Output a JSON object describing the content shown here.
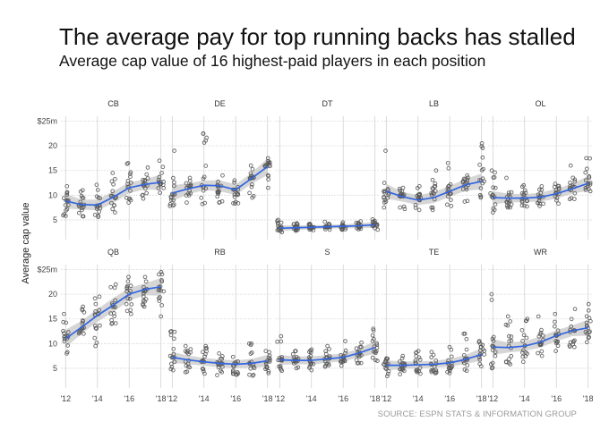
{
  "title": "The average pay for top running backs has stalled",
  "subtitle": "Average cap value of 16 highest-paid players in each position",
  "source": "SOURCE: ESPN STATS & INFORMATION GROUP",
  "chart_data": {
    "type": "scatter",
    "facet": true,
    "ylabel": "Average cap value",
    "ylim": [
      1,
      26
    ],
    "xlim": [
      2011.7,
      2018.3
    ],
    "yticks": [
      5,
      10,
      15,
      20,
      25
    ],
    "ytick_labels": [
      "5",
      "10",
      "15",
      "20",
      "$25m"
    ],
    "xticks": [
      2012,
      2014,
      2016,
      2018
    ],
    "xtick_labels": [
      "'12",
      "'14",
      "'16",
      "'18"
    ],
    "years": [
      2012,
      2013,
      2014,
      2015,
      2016,
      2017,
      2018
    ],
    "colors": {
      "point": "#555555",
      "trend": "#3366e0",
      "band": "#c8c8c8",
      "grid": "#d2d2d2"
    },
    "panels": [
      {
        "name": "CB",
        "trend": [
          8.8,
          8.1,
          8.0,
          9.6,
          11.5,
          12.2,
          12.6
        ],
        "band": [
          1.5,
          1.0,
          1.1,
          1.2,
          1.1,
          1.0,
          1.6
        ],
        "lo": [
          5.8,
          5.7,
          5.6,
          6.5,
          8.5,
          9.3,
          10.5
        ],
        "hi": [
          11.8,
          11.0,
          12.1,
          14.5,
          16.5,
          15.6,
          17.0
        ]
      },
      {
        "name": "DE",
        "trend": [
          10.4,
          11.3,
          12.0,
          11.9,
          11.1,
          13.4,
          15.8
        ],
        "band": [
          1.6,
          1.1,
          1.0,
          1.1,
          1.1,
          1.1,
          1.7
        ],
        "lo": [
          7.8,
          8.5,
          8.2,
          8.5,
          8.3,
          9.5,
          11.5
        ],
        "hi": [
          19.0,
          13.5,
          22.5,
          14.0,
          13.0,
          16.0,
          17.5
        ]
      },
      {
        "name": "DT",
        "trend": [
          3.3,
          3.4,
          3.5,
          3.6,
          3.7,
          3.8,
          4.0
        ],
        "band": [
          0.6,
          0.5,
          0.4,
          0.4,
          0.4,
          0.5,
          0.6
        ],
        "lo": [
          2.5,
          2.8,
          2.9,
          3.0,
          3.0,
          3.1,
          3.0
        ],
        "hi": [
          5.0,
          4.3,
          4.2,
          4.6,
          4.5,
          4.7,
          5.1
        ]
      },
      {
        "name": "LB",
        "trend": [
          10.8,
          9.7,
          9.0,
          9.5,
          10.8,
          12.1,
          12.8
        ],
        "band": [
          1.5,
          1.0,
          1.0,
          1.1,
          1.1,
          1.2,
          1.6
        ],
        "lo": [
          7.5,
          7.2,
          7.0,
          7.0,
          7.8,
          8.7,
          9.5
        ],
        "hi": [
          19.0,
          11.5,
          11.8,
          15.0,
          16.5,
          14.0,
          20.5
        ]
      },
      {
        "name": "OL",
        "trend": [
          9.5,
          9.4,
          9.4,
          9.6,
          10.3,
          11.3,
          12.4
        ],
        "band": [
          1.3,
          0.9,
          0.8,
          0.9,
          1.0,
          1.0,
          1.5
        ],
        "lo": [
          6.5,
          7.5,
          7.7,
          7.8,
          8.3,
          9.2,
          10.8
        ],
        "hi": [
          15.0,
          13.5,
          12.0,
          11.8,
          12.3,
          16.0,
          17.5
        ]
      },
      {
        "name": "QB",
        "trend": [
          11.0,
          13.3,
          15.7,
          17.8,
          20.0,
          21.0,
          21.5
        ],
        "band": [
          1.8,
          1.3,
          1.3,
          1.4,
          1.3,
          1.2,
          1.8
        ],
        "lo": [
          8.0,
          12.0,
          9.5,
          14.0,
          16.0,
          17.5,
          15.5
        ],
        "hi": [
          16.0,
          17.5,
          19.5,
          22.0,
          23.5,
          23.5,
          24.5
        ]
      },
      {
        "name": "RB",
        "trend": [
          7.2,
          6.7,
          6.3,
          6.0,
          5.8,
          6.0,
          6.5
        ],
        "band": [
          1.1,
          0.9,
          0.8,
          0.8,
          0.8,
          0.9,
          1.2
        ],
        "lo": [
          4.6,
          4.2,
          3.9,
          3.6,
          3.7,
          3.5,
          4.0
        ],
        "hi": [
          12.5,
          9.5,
          9.5,
          8.0,
          7.3,
          10.0,
          8.5
        ]
      },
      {
        "name": "S",
        "trend": [
          6.7,
          6.6,
          6.6,
          6.9,
          7.2,
          8.1,
          9.2
        ],
        "band": [
          1.0,
          0.8,
          0.8,
          0.8,
          0.8,
          0.9,
          1.3
        ],
        "lo": [
          4.5,
          5.0,
          4.6,
          5.3,
          5.5,
          6.0,
          6.5
        ],
        "hi": [
          11.5,
          8.5,
          8.8,
          9.5,
          10.5,
          10.2,
          13.0
        ]
      },
      {
        "name": "TE",
        "trend": [
          5.6,
          5.6,
          5.7,
          5.8,
          6.1,
          6.8,
          7.8
        ],
        "band": [
          1.0,
          0.8,
          0.7,
          0.7,
          0.8,
          0.9,
          1.3
        ],
        "lo": [
          3.4,
          3.8,
          3.9,
          4.0,
          4.0,
          4.5,
          5.4
        ],
        "hi": [
          7.0,
          7.5,
          8.5,
          8.3,
          9.3,
          12.0,
          10.5
        ]
      },
      {
        "name": "WR",
        "trend": [
          9.3,
          9.2,
          9.5,
          10.3,
          11.6,
          12.6,
          13.2
        ],
        "band": [
          1.6,
          1.0,
          1.0,
          1.1,
          1.1,
          1.1,
          1.6
        ],
        "lo": [
          5.0,
          5.8,
          6.3,
          7.5,
          8.5,
          9.3,
          10.3
        ],
        "hi": [
          20.0,
          15.5,
          15.0,
          15.5,
          16.0,
          17.0,
          18.0
        ]
      }
    ]
  }
}
